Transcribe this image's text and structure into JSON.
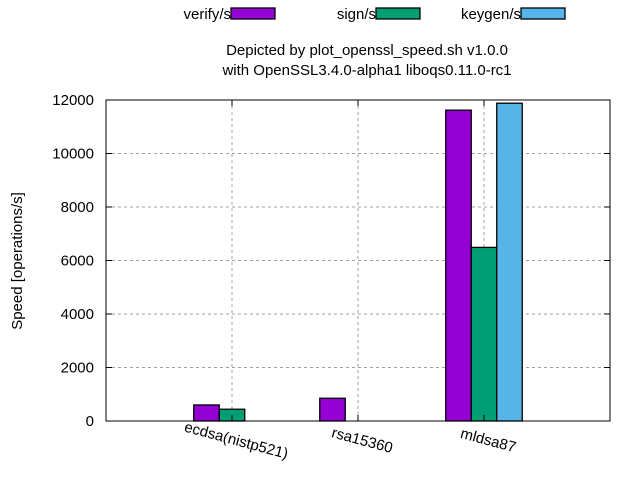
{
  "chart_data": {
    "type": "bar",
    "title": "Depicted by plot_openssl_speed.sh v1.0.0",
    "subtitle": "with OpenSSL3.4.0-alpha1 liboqs0.11.0-rc1",
    "xlabel": "",
    "ylabel": "Speed [operations/s]",
    "ylim": [
      0,
      12000
    ],
    "yticks": [
      "0",
      "2000",
      "4000",
      "6000",
      "8000",
      "10000",
      "12000"
    ],
    "categories": [
      "ecdsa(nistp521)",
      "rsa15360",
      "mldsa87"
    ],
    "grid": true,
    "legend_placement": "top",
    "series": [
      {
        "name": "verify/s",
        "color": "#9400d3",
        "values": [
          600,
          850,
          11620
        ]
      },
      {
        "name": "sign/s",
        "color": "#009e73",
        "values": [
          440,
          0,
          6490
        ]
      },
      {
        "name": "keygen/s",
        "color": "#56b4e9",
        "values": [
          0,
          0,
          11880
        ]
      }
    ]
  }
}
